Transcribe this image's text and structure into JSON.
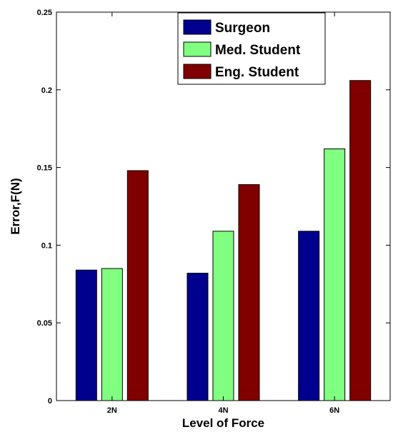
{
  "chart_data": {
    "type": "bar",
    "title": "",
    "xlabel": "Level of Force",
    "ylabel": "Error,F(N)",
    "categories": [
      "2N",
      "4N",
      "6N"
    ],
    "series": [
      {
        "name": "Surgeon",
        "color": "#00008f",
        "values": [
          0.084,
          0.082,
          0.109
        ]
      },
      {
        "name": "Med. Student",
        "color": "#80ff80",
        "values": [
          0.085,
          0.109,
          0.162
        ]
      },
      {
        "name": "Eng. Student",
        "color": "#800000",
        "values": [
          0.148,
          0.139,
          0.206
        ]
      }
    ],
    "ylim": [
      0,
      0.25
    ],
    "yticks": [
      0,
      0.05,
      0.1,
      0.15,
      0.2,
      0.25
    ],
    "ytick_labels": [
      "0",
      "0.05",
      "0.1",
      "0.15",
      "0.2",
      "0.25"
    ],
    "legend_position": "top-right",
    "grid": false
  }
}
